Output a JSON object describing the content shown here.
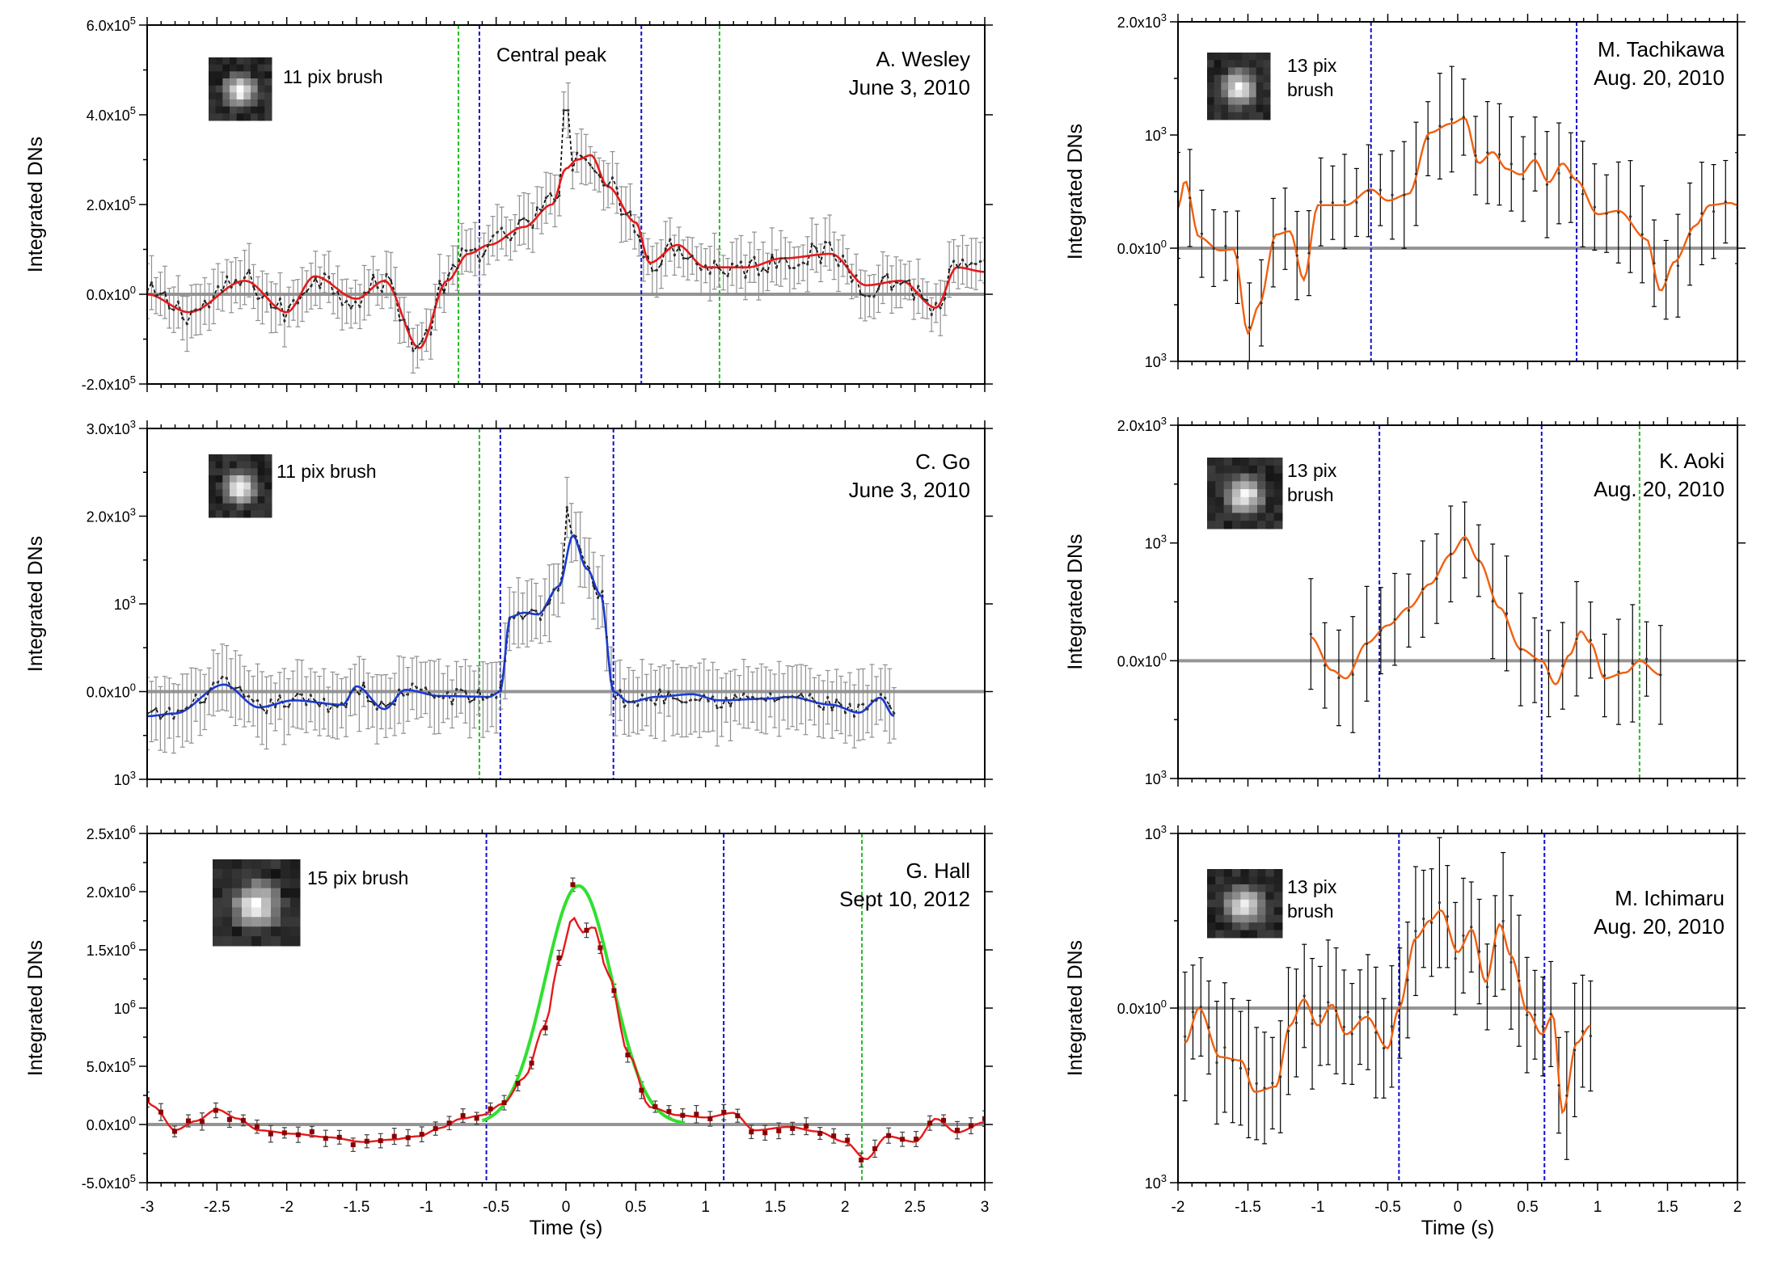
{
  "chart_data": [
    {
      "id": "wesley",
      "type": "line",
      "ylabel": "Integrated DNs",
      "xlabel": "",
      "xlim": [
        -3,
        3
      ],
      "ylim": [
        -200000,
        600000
      ],
      "yticks": [
        {
          "v": 600000,
          "label": "6.0x10",
          "exp": "5"
        },
        {
          "v": 400000,
          "label": "4.0x10",
          "exp": "5"
        },
        {
          "v": 200000,
          "label": "2.0x10",
          "exp": "5"
        },
        {
          "v": 0,
          "label": "0.0x10",
          "exp": "0"
        },
        {
          "v": -200000,
          "label": "-2.0x10",
          "exp": "5"
        }
      ],
      "observer": "A. Wesley",
      "date": "June 3, 2010",
      "brush": "11 pix brush",
      "annotation": "Central peak",
      "colors": {
        "smooth": "#e41a1c",
        "raw": "#000000",
        "err": "#909090"
      },
      "vlines": [
        {
          "x": -0.77,
          "color": "#22c022"
        },
        {
          "x": -0.62,
          "color": "#1010d0"
        },
        {
          "x": 0.54,
          "color": "#1010d0"
        },
        {
          "x": 1.1,
          "color": "#22c022"
        }
      ],
      "peaks": [
        [
          -3.0,
          0
        ],
        [
          -2.7,
          -40000
        ],
        [
          -2.3,
          30000
        ],
        [
          -2.0,
          -40000
        ],
        [
          -1.8,
          40000
        ],
        [
          -1.5,
          -10000
        ],
        [
          -1.3,
          30000
        ],
        [
          -1.05,
          -120000
        ],
        [
          -0.85,
          30000
        ],
        [
          -0.7,
          90000
        ],
        [
          -0.55,
          110000
        ],
        [
          -0.3,
          150000
        ],
        [
          -0.1,
          200000
        ],
        [
          0.0,
          280000
        ],
        [
          0.08,
          300000
        ],
        [
          0.18,
          310000
        ],
        [
          0.3,
          240000
        ],
        [
          0.5,
          160000
        ],
        [
          0.6,
          70000
        ],
        [
          0.8,
          110000
        ],
        [
          1.0,
          60000
        ],
        [
          1.3,
          60000
        ],
        [
          1.55,
          80000
        ],
        [
          1.9,
          90000
        ],
        [
          2.15,
          20000
        ],
        [
          2.4,
          30000
        ],
        [
          2.65,
          -30000
        ],
        [
          2.8,
          60000
        ],
        [
          3.0,
          50000
        ]
      ],
      "n": 190,
      "noise": 28000,
      "err": 50000,
      "spike": {
        "x": 0.0,
        "y": 410000
      }
    },
    {
      "id": "go",
      "type": "line",
      "ylabel": "Integrated DNs",
      "xlabel": "",
      "xlim": [
        -3,
        3
      ],
      "ylim": [
        -1000,
        3000
      ],
      "yticks": [
        {
          "v": 3000,
          "label": "3.0x10",
          "exp": "3"
        },
        {
          "v": 2000,
          "label": "2.0x10",
          "exp": "3"
        },
        {
          "v": 1000,
          "label": "10",
          "exp": "3"
        },
        {
          "v": 0,
          "label": "0.0x10",
          "exp": "0"
        },
        {
          "v": -1000,
          "label": "10",
          "exp": "3"
        }
      ],
      "observer": "C. Go",
      "date": "June 3, 2010",
      "brush": "11 pix brush",
      "colors": {
        "smooth": "#1a3ad0",
        "raw": "#000000",
        "err": "#909090"
      },
      "vlines": [
        {
          "x": -0.62,
          "color": "#22c022"
        },
        {
          "x": -0.47,
          "color": "#1010d0"
        },
        {
          "x": 0.34,
          "color": "#1010d0"
        }
      ],
      "peaks": [
        [
          -3.0,
          -280
        ],
        [
          -2.8,
          -250
        ],
        [
          -2.45,
          80
        ],
        [
          -2.2,
          -180
        ],
        [
          -1.95,
          -100
        ],
        [
          -1.6,
          -150
        ],
        [
          -1.5,
          60
        ],
        [
          -1.3,
          -200
        ],
        [
          -1.15,
          20
        ],
        [
          -0.9,
          -50
        ],
        [
          -0.55,
          -60
        ],
        [
          -0.47,
          0
        ],
        [
          -0.4,
          850
        ],
        [
          -0.3,
          900
        ],
        [
          -0.2,
          880
        ],
        [
          -0.05,
          1200
        ],
        [
          0.05,
          1780
        ],
        [
          0.15,
          1400
        ],
        [
          0.25,
          1100
        ],
        [
          0.34,
          0
        ],
        [
          0.45,
          -120
        ],
        [
          0.65,
          -60
        ],
        [
          0.9,
          -30
        ],
        [
          1.1,
          -100
        ],
        [
          1.45,
          -80
        ],
        [
          1.6,
          -60
        ],
        [
          1.9,
          -150
        ],
        [
          2.1,
          -240
        ],
        [
          2.25,
          -70
        ],
        [
          2.35,
          -280
        ]
      ],
      "xmax": 2.35,
      "n": 170,
      "noise": 90,
      "err": 350,
      "spike": {
        "x": 0.02,
        "y": 2100
      }
    },
    {
      "id": "hall",
      "type": "line",
      "ylabel": "Integrated DNs",
      "xlabel": "Time (s)",
      "xlim": [
        -3,
        3
      ],
      "ylim": [
        -500000,
        2500000
      ],
      "xticks": [
        -3,
        -2.5,
        -2,
        -1.5,
        -1,
        -0.5,
        0,
        0.5,
        1,
        1.5,
        2,
        2.5,
        3
      ],
      "yticks": [
        {
          "v": 2500000,
          "label": "2.5x10",
          "exp": "6"
        },
        {
          "v": 2000000,
          "label": "2.0x10",
          "exp": "6"
        },
        {
          "v": 1500000,
          "label": "1.5x10",
          "exp": "6"
        },
        {
          "v": 1000000,
          "label": "10",
          "exp": "6"
        },
        {
          "v": 500000,
          "label": "5.0x10",
          "exp": "5"
        },
        {
          "v": 0,
          "label": "0.0x10",
          "exp": "0"
        },
        {
          "v": -500000,
          "label": "-5.0x10",
          "exp": "5"
        }
      ],
      "observer": "G. Hall",
      "date": "Sept 10, 2012",
      "brush": "15 pix brush",
      "colors": {
        "smooth": "#e41a1c",
        "raw": "#8b0000",
        "err": "#404040",
        "fit": "#30e030"
      },
      "vlines": [
        {
          "x": -0.57,
          "color": "#1010d0"
        },
        {
          "x": 1.13,
          "color": "#1010d0"
        },
        {
          "x": 2.12,
          "color": "#22c022"
        }
      ],
      "peaks": [
        [
          -3.0,
          200000
        ],
        [
          -2.95,
          150000
        ],
        [
          -2.8,
          -50000
        ],
        [
          -2.65,
          30000
        ],
        [
          -2.5,
          130000
        ],
        [
          -2.35,
          50000
        ],
        [
          -2.2,
          -50000
        ],
        [
          -1.95,
          -80000
        ],
        [
          -1.7,
          -110000
        ],
        [
          -1.45,
          -150000
        ],
        [
          -1.25,
          -130000
        ],
        [
          -1.05,
          -100000
        ],
        [
          -0.9,
          -30000
        ],
        [
          -0.75,
          50000
        ],
        [
          -0.6,
          80000
        ],
        [
          -0.45,
          180000
        ],
        [
          -0.3,
          400000
        ],
        [
          -0.15,
          850000
        ],
        [
          -0.05,
          1400000
        ],
        [
          0.05,
          1780000
        ],
        [
          0.12,
          1650000
        ],
        [
          0.2,
          1700000
        ],
        [
          0.3,
          1300000
        ],
        [
          0.45,
          600000
        ],
        [
          0.6,
          150000
        ],
        [
          0.8,
          80000
        ],
        [
          1.0,
          60000
        ],
        [
          1.2,
          100000
        ],
        [
          1.35,
          -50000
        ],
        [
          1.6,
          -20000
        ],
        [
          1.8,
          -60000
        ],
        [
          2.0,
          -150000
        ],
        [
          2.15,
          -300000
        ],
        [
          2.3,
          -100000
        ],
        [
          2.5,
          -150000
        ],
        [
          2.65,
          50000
        ],
        [
          2.8,
          -70000
        ],
        [
          3.0,
          20000
        ]
      ],
      "n": 62,
      "noise": 35000,
      "err": 60000,
      "fit": {
        "amp": 2050000,
        "mu": 0.09,
        "sigma": 0.24,
        "from": -0.6,
        "to": 0.85
      },
      "spike": {
        "x": 0.02,
        "y": 2060000
      }
    },
    {
      "id": "tachikawa",
      "type": "line",
      "ylabel": "Integrated DNs",
      "xlabel": "",
      "xlim": [
        -2,
        2
      ],
      "ylim": [
        -1000,
        2000
      ],
      "yticks": [
        {
          "v": 2000,
          "label": "2.0x10",
          "exp": "3"
        },
        {
          "v": 1000,
          "label": "10",
          "exp": "3"
        },
        {
          "v": 0,
          "label": "0.0x10",
          "exp": "0"
        },
        {
          "v": -1000,
          "label": "10",
          "exp": "3"
        }
      ],
      "observer": "M. Tachikawa",
      "date": "Aug. 20, 2010",
      "brush": "13 pix brush",
      "colors": {
        "smooth": "#f06010",
        "raw": "#000000",
        "err": "#000000"
      },
      "vlines": [
        {
          "x": -0.62,
          "color": "#1010d0"
        },
        {
          "x": 0.85,
          "color": "#1010d0"
        }
      ],
      "peaks": [
        [
          -2.0,
          350
        ],
        [
          -1.95,
          600
        ],
        [
          -1.85,
          100
        ],
        [
          -1.7,
          -20
        ],
        [
          -1.6,
          -10
        ],
        [
          -1.5,
          -750
        ],
        [
          -1.42,
          -500
        ],
        [
          -1.3,
          120
        ],
        [
          -1.2,
          150
        ],
        [
          -1.1,
          -280
        ],
        [
          -1.0,
          380
        ],
        [
          -0.8,
          380
        ],
        [
          -0.62,
          520
        ],
        [
          -0.5,
          420
        ],
        [
          -0.35,
          480
        ],
        [
          -0.2,
          1020
        ],
        [
          -0.05,
          1100
        ],
        [
          0.05,
          1150
        ],
        [
          0.15,
          750
        ],
        [
          0.25,
          850
        ],
        [
          0.35,
          700
        ],
        [
          0.45,
          650
        ],
        [
          0.55,
          780
        ],
        [
          0.65,
          580
        ],
        [
          0.75,
          750
        ],
        [
          0.85,
          600
        ],
        [
          1.0,
          300
        ],
        [
          1.15,
          330
        ],
        [
          1.35,
          80
        ],
        [
          1.45,
          -380
        ],
        [
          1.55,
          -120
        ],
        [
          1.7,
          200
        ],
        [
          1.8,
          380
        ],
        [
          1.95,
          400
        ],
        [
          2.0,
          380
        ]
      ],
      "n": 48,
      "noise": 60,
      "err": 400
    },
    {
      "id": "aoki",
      "type": "line",
      "ylabel": "Integrated DNs",
      "xlabel": "",
      "xlim": [
        -2,
        2
      ],
      "ylim": [
        -1000,
        2000
      ],
      "yticks": [
        {
          "v": 2000,
          "label": "2.0x10",
          "exp": "3"
        },
        {
          "v": 1000,
          "label": "10",
          "exp": "3"
        },
        {
          "v": 0,
          "label": "0.0x10",
          "exp": "0"
        },
        {
          "v": -1000,
          "label": "10",
          "exp": "3"
        }
      ],
      "observer": "K. Aoki",
      "date": "Aug. 20, 2010",
      "brush": "13 pix brush",
      "colors": {
        "smooth": "#f06010",
        "raw": "#000000",
        "err": "#000000"
      },
      "vlines": [
        {
          "x": -0.56,
          "color": "#1010d0"
        },
        {
          "x": 0.6,
          "color": "#1010d0"
        },
        {
          "x": 1.3,
          "color": "#22c022"
        }
      ],
      "peaks": [
        [
          -1.05,
          200
        ],
        [
          -0.9,
          -80
        ],
        [
          -0.8,
          -150
        ],
        [
          -0.65,
          150
        ],
        [
          -0.5,
          300
        ],
        [
          -0.35,
          450
        ],
        [
          -0.2,
          650
        ],
        [
          -0.05,
          900
        ],
        [
          0.05,
          1050
        ],
        [
          0.15,
          850
        ],
        [
          0.3,
          450
        ],
        [
          0.45,
          100
        ],
        [
          0.6,
          0
        ],
        [
          0.7,
          -200
        ],
        [
          0.8,
          50
        ],
        [
          0.88,
          250
        ],
        [
          0.95,
          150
        ],
        [
          1.05,
          -150
        ],
        [
          1.2,
          -100
        ],
        [
          1.3,
          0
        ],
        [
          1.45,
          -120
        ]
      ],
      "xmin": -1.05,
      "xmax": 1.45,
      "n": 26,
      "noise": 50,
      "err": 400
    },
    {
      "id": "ichimaru",
      "type": "line",
      "ylabel": "Integrated DNs",
      "xlabel": "Time (s)",
      "xlim": [
        -2,
        2
      ],
      "xticks": [
        -2,
        -1.5,
        -1,
        -0.5,
        0,
        0.5,
        1,
        1.5,
        2
      ],
      "ylim": [
        -1000,
        1000
      ],
      "yticks": [
        {
          "v": 1000,
          "label": "10",
          "exp": "3"
        },
        {
          "v": 0,
          "label": "0.0x10",
          "exp": "0"
        },
        {
          "v": -1000,
          "label": "10",
          "exp": "3"
        }
      ],
      "observer": "M. Ichimaru",
      "date": "Aug. 20, 2010",
      "brush": "13 pix brush",
      "colors": {
        "smooth": "#f06010",
        "raw": "#000000",
        "err": "#000000"
      },
      "vlines": [
        {
          "x": -0.42,
          "color": "#1010d0"
        },
        {
          "x": 0.62,
          "color": "#1010d0"
        }
      ],
      "peaks": [
        [
          -1.95,
          -200
        ],
        [
          -1.85,
          0
        ],
        [
          -1.7,
          -280
        ],
        [
          -1.55,
          -300
        ],
        [
          -1.45,
          -480
        ],
        [
          -1.3,
          -450
        ],
        [
          -1.2,
          -100
        ],
        [
          -1.1,
          50
        ],
        [
          -1.0,
          -100
        ],
        [
          -0.9,
          20
        ],
        [
          -0.8,
          -150
        ],
        [
          -0.65,
          -50
        ],
        [
          -0.5,
          -230
        ],
        [
          -0.42,
          0
        ],
        [
          -0.3,
          400
        ],
        [
          -0.2,
          500
        ],
        [
          -0.12,
          560
        ],
        [
          0.0,
          320
        ],
        [
          0.1,
          450
        ],
        [
          0.2,
          150
        ],
        [
          0.3,
          480
        ],
        [
          0.38,
          300
        ],
        [
          0.5,
          -20
        ],
        [
          0.6,
          -150
        ],
        [
          0.68,
          -40
        ],
        [
          0.75,
          -600
        ],
        [
          0.85,
          -200
        ],
        [
          0.95,
          -100
        ]
      ],
      "xmin": -1.95,
      "xmax": 0.95,
      "n": 52,
      "noise": 60,
      "err": 320
    }
  ]
}
